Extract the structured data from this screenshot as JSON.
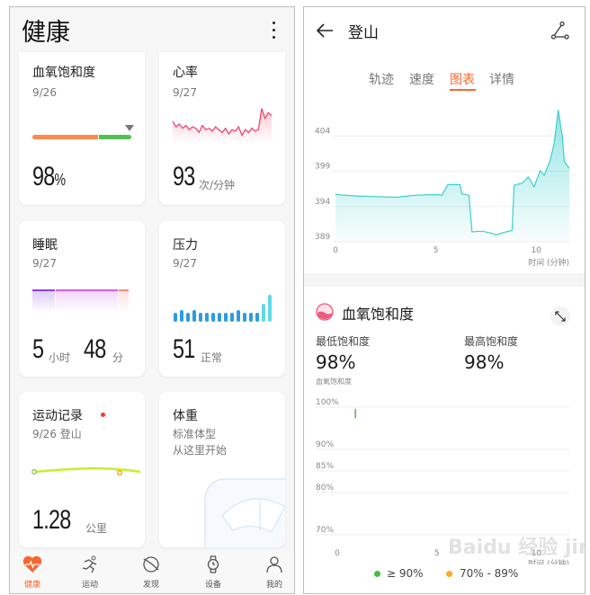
{
  "left": {
    "title": "健康",
    "cards": {
      "spo2": {
        "title": "血氧饱和度",
        "date": "9/26",
        "value": "98",
        "unit": "%",
        "bar_colors": [
          "#ff8a4c",
          "#52c152"
        ],
        "marker_fraction": 0.9
      },
      "heart": {
        "title": "心率",
        "date": "9/27",
        "value": "93",
        "unit": "次/分钟",
        "color": "#f2476a",
        "spark": [
          66,
          62,
          64,
          61,
          63,
          60,
          62,
          61,
          58,
          63,
          60,
          61,
          59,
          62,
          60,
          58,
          61,
          57,
          60,
          59,
          62,
          56,
          60,
          58,
          61,
          59,
          60,
          75,
          68,
          72,
          70
        ]
      },
      "sleep": {
        "title": "睡眠",
        "date": "9/27",
        "hours": "5",
        "hours_unit": "小时",
        "minutes": "48",
        "minutes_unit": "分"
      },
      "stress": {
        "title": "压力",
        "date": "9/27",
        "value": "51",
        "status": "正常",
        "bars": [
          3,
          4,
          3,
          4,
          3,
          3,
          3,
          3,
          3,
          3,
          4,
          3,
          3,
          3,
          6,
          9
        ]
      },
      "exercise": {
        "title": "运动记录",
        "date": "9/26 登山",
        "value": "1.28",
        "unit": "公里",
        "has_new": true
      },
      "weight": {
        "title": "体重",
        "line1": "标准体型",
        "line2": "从这里开始"
      }
    },
    "nav": [
      {
        "label": "健康",
        "icon": "heart-icon",
        "active": true
      },
      {
        "label": "运动",
        "icon": "running-icon"
      },
      {
        "label": "发现",
        "icon": "planet-icon"
      },
      {
        "label": "设备",
        "icon": "watch-icon"
      },
      {
        "label": "我的",
        "icon": "person-icon"
      }
    ],
    "accent": "#f5682e"
  },
  "right": {
    "title": "登山",
    "tabs": [
      "轨迹",
      "速度",
      "图表",
      "详情"
    ],
    "active_tab": "图表",
    "spo2_section": {
      "title": "血氧饱和度",
      "min_label": "最低饱和度",
      "min_value": "98%",
      "max_label": "最高饱和度",
      "max_value": "98%"
    },
    "watermark": "Baidu 经验 jingyan.baidu.com"
  },
  "chart_data": [
    {
      "type": "area",
      "xlabel": "时间 (分钟)",
      "ylabel": "",
      "yticks": [
        389,
        394,
        399,
        404
      ],
      "xticks": [
        0,
        5,
        10
      ],
      "xlim": [
        0,
        11.65
      ],
      "ylim": [
        389,
        409
      ],
      "color": "#3ccfcf",
      "x": [
        0,
        1,
        2,
        3,
        4,
        5,
        5.3,
        5.6,
        6.2,
        6.3,
        6.65,
        6.8,
        7.3,
        7.8,
        8.0,
        8.5,
        8.8,
        8.9,
        9.0,
        9.3,
        9.4,
        9.6,
        9.9,
        10.2,
        10.4,
        10.7,
        10.9,
        11.1,
        11.3,
        11.4,
        11.65
      ],
      "y": [
        395.7,
        395.5,
        395.4,
        395.3,
        395.6,
        395.7,
        395.6,
        397.1,
        397.1,
        395.8,
        395.6,
        390.4,
        390.5,
        390.2,
        390.0,
        390.4,
        390.6,
        397.0,
        397.1,
        397.3,
        397.6,
        398.2,
        396.8,
        399.1,
        398.4,
        400.6,
        403.0,
        407.7,
        404.0,
        400.4,
        399.4
      ]
    },
    {
      "type": "bar",
      "title": "血氧饱和度",
      "xlabel": "时间 (分钟)",
      "yticks": [
        "100%",
        "90%",
        "85%",
        "80%",
        "70%"
      ],
      "xticks": [
        0,
        5,
        10
      ],
      "x": [
        1
      ],
      "y": [
        98
      ],
      "legend": [
        {
          "label": "≥ 90%",
          "color": "#3fbf3f"
        },
        {
          "label": "70% - 89%",
          "color": "#ffa726"
        }
      ]
    }
  ]
}
